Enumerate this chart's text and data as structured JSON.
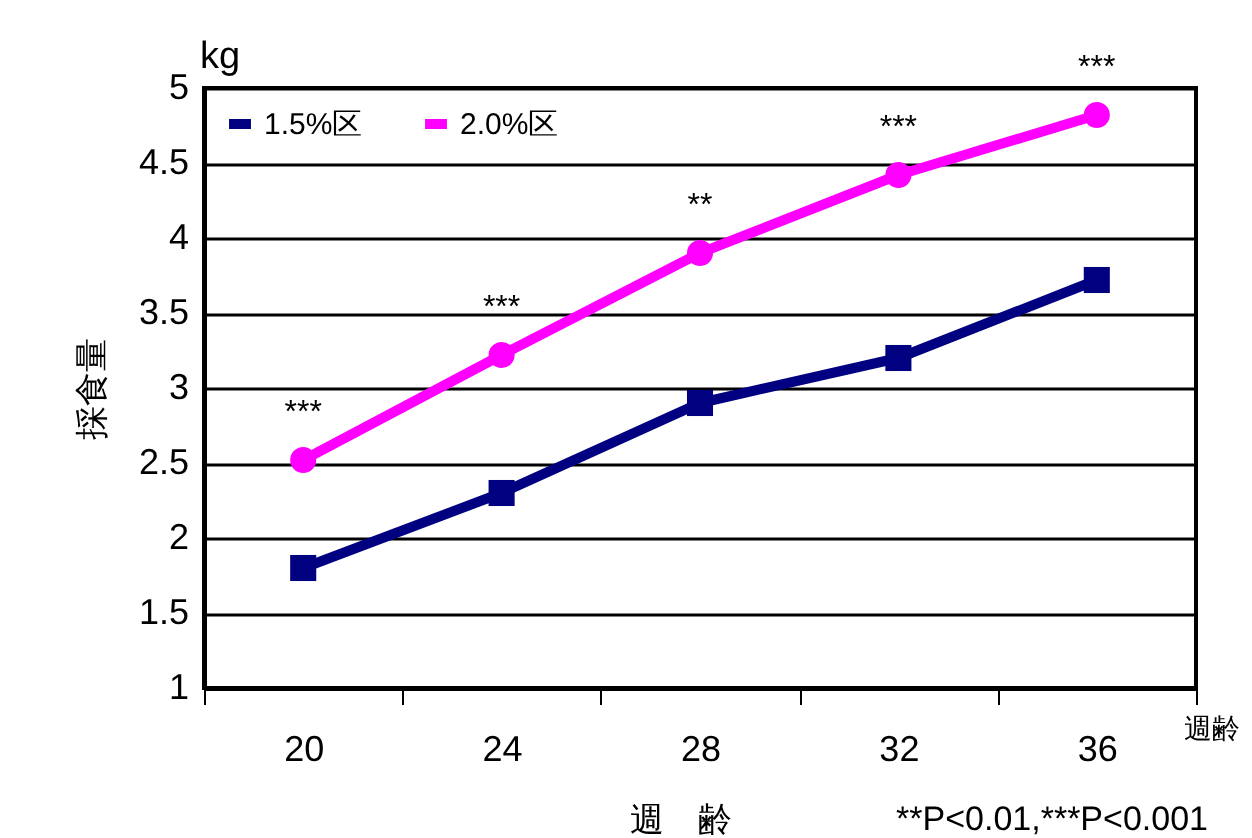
{
  "chart_data": {
    "type": "line",
    "ylabel": "採食量",
    "xlabel": "週　齢",
    "categories": [
      "20",
      "24",
      "28",
      "32",
      "36"
    ],
    "series": [
      {
        "name": "1.5%区",
        "color": "#000080",
        "marker": "square",
        "values": [
          1.8,
          2.3,
          2.9,
          3.2,
          3.72
        ]
      },
      {
        "name": "2.0%区",
        "color": "#ff00ff",
        "marker": "circle",
        "values": [
          2.52,
          3.22,
          3.9,
          4.42,
          4.82
        ]
      }
    ],
    "ylim": [
      1,
      5
    ],
    "yticks": [
      1,
      1.5,
      2,
      2.5,
      3,
      3.5,
      4,
      4.5,
      5
    ],
    "grid": "y",
    "legend": "top left",
    "line_style": "solid",
    "annotations": [
      {
        "text": "***",
        "x": "20",
        "y": 2.52
      },
      {
        "text": "***",
        "x": "24",
        "y": 3.22
      },
      {
        "text": "**",
        "x": "28",
        "y": 3.9
      },
      {
        "text": "***",
        "x": "32",
        "y": 4.42
      },
      {
        "text": "***",
        "x": "36",
        "y": 4.82
      },
      "kg",
      "週齢",
      "**P<0.01,***P<0.001"
    ]
  }
}
